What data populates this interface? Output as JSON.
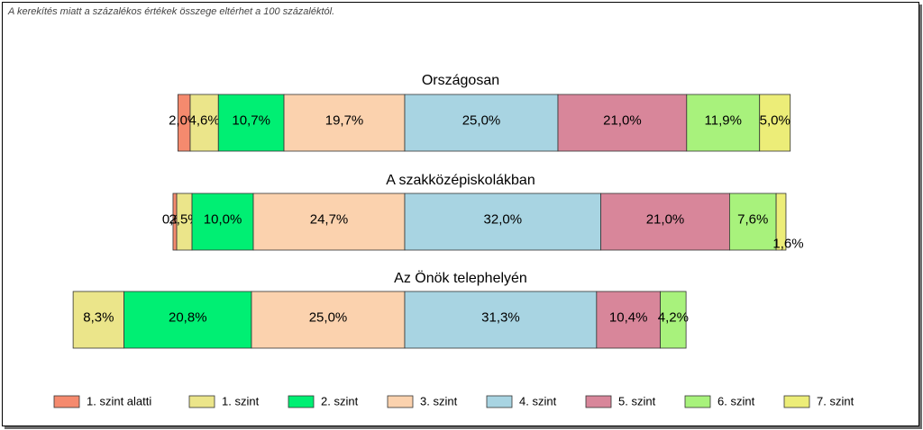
{
  "note": "A kerekítés miatt a  százalékos értékek összege eltérhet a 100 százaléktól.",
  "colors": [
    "#f58a6e",
    "#ebe58a",
    "#00ef73",
    "#fbd2ae",
    "#a8d4e2",
    "#d8869a",
    "#a8f27c",
    "#eced78"
  ],
  "chart_data": {
    "type": "bar",
    "orientation": "horizontal",
    "stacked": true,
    "legend_position": "bottom",
    "series_names": [
      "1. szint alatti",
      "1. szint",
      "2. szint",
      "3. szint",
      "4. szint",
      "5. szint",
      "6. szint",
      "7. szint"
    ],
    "groups": [
      {
        "title": "Országosan",
        "values": [
          2.0,
          4.6,
          10.7,
          19.7,
          25.0,
          21.0,
          11.9,
          5.0
        ],
        "labels": [
          "2,0%",
          "4,6%",
          "10,7%",
          "19,7%",
          "25,0%",
          "21,0%",
          "11,9%",
          "5,0%"
        ]
      },
      {
        "title": "A szakközépiskolákban",
        "values": [
          0.6,
          2.5,
          10.0,
          24.7,
          32.0,
          21.0,
          7.6,
          1.6
        ],
        "labels": [
          "0,6%",
          "2,5%",
          "10,0%",
          "24,7%",
          "32,0%",
          "21,0%",
          "7,6%",
          "1,6%"
        ]
      },
      {
        "title": "Az Önök telephelyén",
        "values": [
          0,
          8.3,
          20.8,
          25.0,
          31.3,
          10.4,
          4.2,
          0
        ],
        "labels": [
          "",
          "8,3%",
          "20,8%",
          "25,0%",
          "31,3%",
          "10,4%",
          "4,2%",
          ""
        ]
      }
    ]
  }
}
